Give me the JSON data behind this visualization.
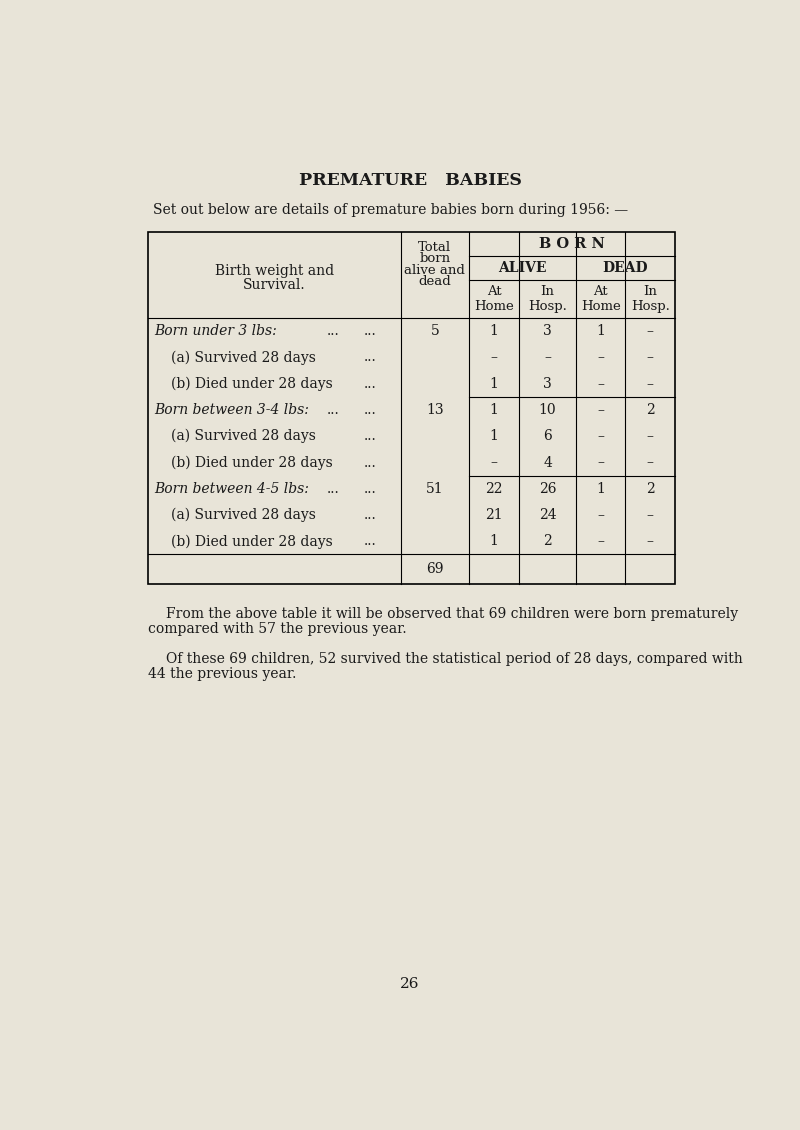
{
  "title": "PREMATURE   BABIES",
  "subtitle": "Set out below are details of premature babies born during 1956: —",
  "bg_color": "#e8e4d8",
  "page_number": "26",
  "table": {
    "rows": [
      {
        "label": "Born under 3 lbs:",
        "dots": "...     ...",
        "indent": 0,
        "italic": true,
        "total": "5",
        "at_home": "1",
        "in_hosp": "3",
        "dead_home": "1",
        "dead_hosp": "–",
        "sep_below": false
      },
      {
        "label": "(a) Survived 28 days",
        "dots": "...",
        "indent": 1,
        "italic": false,
        "total": "",
        "at_home": "–",
        "in_hosp": "–",
        "dead_home": "–",
        "dead_hosp": "–",
        "sep_below": false
      },
      {
        "label": "(b) Died under 28 days",
        "dots": "...",
        "indent": 1,
        "italic": false,
        "total": "",
        "at_home": "1",
        "in_hosp": "3",
        "dead_home": "–",
        "dead_hosp": "–",
        "sep_below": true
      },
      {
        "label": "Born between 3-4 lbs:",
        "dots": "...     ...",
        "indent": 0,
        "italic": true,
        "total": "13",
        "at_home": "1",
        "in_hosp": "10",
        "dead_home": "–",
        "dead_hosp": "2",
        "sep_below": false
      },
      {
        "label": "(a) Survived 28 days",
        "dots": "...",
        "indent": 1,
        "italic": false,
        "total": "",
        "at_home": "1",
        "in_hosp": "6",
        "dead_home": "–",
        "dead_hosp": "–",
        "sep_below": false
      },
      {
        "label": "(b) Died under 28 days",
        "dots": "...",
        "indent": 1,
        "italic": false,
        "total": "",
        "at_home": "–",
        "in_hosp": "4",
        "dead_home": "–",
        "dead_hosp": "–",
        "sep_below": true
      },
      {
        "label": "Born between 4-5 lbs:",
        "dots": "...     ...",
        "indent": 0,
        "italic": true,
        "total": "51",
        "at_home": "22",
        "in_hosp": "26",
        "dead_home": "1",
        "dead_hosp": "2",
        "sep_below": false
      },
      {
        "label": "(a) Survived 28 days",
        "dots": "...",
        "indent": 1,
        "italic": false,
        "total": "",
        "at_home": "21",
        "in_hosp": "24",
        "dead_home": "–",
        "dead_hosp": "–",
        "sep_below": false
      },
      {
        "label": "(b) Died under 28 days",
        "dots": "...",
        "indent": 1,
        "italic": false,
        "total": "",
        "at_home": "1",
        "in_hosp": "2",
        "dead_home": "–",
        "dead_hosp": "–",
        "sep_below": false
      }
    ],
    "grand_total": "69"
  },
  "paragraph1_line1": "From the above table it will be observed that 69 children were born prematurely",
  "paragraph1_line2": "compared with 57 the previous year.",
  "paragraph2_line1": "Of these 69 children, 52 survived the statistical period of 28 days, compared with",
  "paragraph2_line2": "44 the previous year."
}
